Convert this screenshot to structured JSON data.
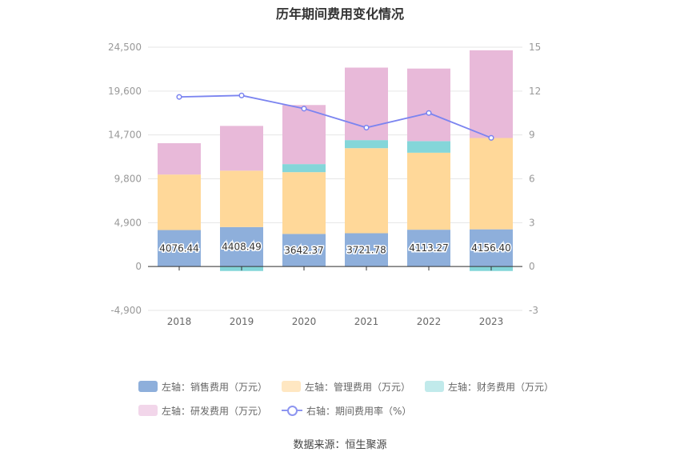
{
  "chart_data": {
    "type": "bar",
    "title": "历年期间费用变化情况",
    "categories": [
      "2018",
      "2019",
      "2020",
      "2021",
      "2022",
      "2023"
    ],
    "stacked": true,
    "series": [
      {
        "name": "左轴：销售费用（万元）",
        "axis": "left",
        "type": "bar",
        "color": "#8eafdb",
        "values": [
          4076.44,
          4408.49,
          3642.37,
          3721.78,
          4113.27,
          4156.4
        ]
      },
      {
        "name": "左轴：管理费用（万元）",
        "axis": "left",
        "type": "bar",
        "color": "#ffd899",
        "values": [
          6200,
          6300,
          6900,
          9500,
          8600,
          10200
        ]
      },
      {
        "name": "左轴：财务费用（万元）",
        "axis": "left",
        "type": "bar",
        "color": "#84d6d9",
        "values": [
          0,
          -500,
          900,
          900,
          1300,
          -500
        ]
      },
      {
        "name": "左轴：研发费用（万元）",
        "axis": "left",
        "type": "bar",
        "color": "#e8b9d9",
        "values": [
          3500,
          5000,
          6600,
          8100,
          8100,
          9800
        ]
      },
      {
        "name": "右轴：期间费用率（%）",
        "axis": "right",
        "type": "line",
        "color": "#7b84f0",
        "values": [
          11.6,
          11.7,
          10.8,
          9.5,
          10.5,
          8.8
        ]
      }
    ],
    "data_labels": [
      "4076.44",
      "4408.49",
      "3642.37",
      "3721.78",
      "4113.27",
      "4156.40"
    ],
    "left_axis": {
      "min": -4900,
      "max": 24500,
      "ticks": [
        "-4,900",
        "0",
        "4,900",
        "9,800",
        "14,700",
        "19,600",
        "24,500"
      ]
    },
    "right_axis": {
      "min": -3,
      "max": 15,
      "ticks": [
        "-3",
        "0",
        "3",
        "6",
        "9",
        "12",
        "15"
      ]
    },
    "grid": true,
    "legend_position": "bottom",
    "legend_colors": [
      "#8eafdb",
      "#ffe7c2",
      "#c1eaeb",
      "#f2d6ea",
      "#8d95f0"
    ]
  },
  "source": "数据来源：恒生聚源"
}
